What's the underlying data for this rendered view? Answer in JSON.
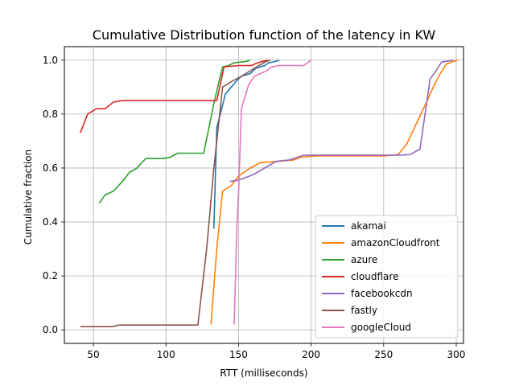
{
  "chart_data": {
    "type": "line",
    "title": "Cumulative Distribution function of the latency in KW",
    "xlabel": "RTT (milliseconds)",
    "ylabel": "Cumulative fraction",
    "xlim": [
      30,
      305
    ],
    "ylim": [
      -0.05,
      1.05
    ],
    "xticks": [
      50,
      100,
      150,
      200,
      250,
      300
    ],
    "yticks": [
      0.0,
      0.2,
      0.4,
      0.6,
      0.8,
      1.0
    ],
    "xtick_labels": [
      "50",
      "100",
      "150",
      "200",
      "250",
      "300"
    ],
    "ytick_labels": [
      "0.0",
      "0.2",
      "0.4",
      "0.6",
      "0.8",
      "1.0"
    ],
    "grid": true,
    "legend_position": "lower right",
    "series": [
      {
        "name": "akamai",
        "color": "#1f77b4",
        "points": [
          [
            133,
            0.375
          ],
          [
            135,
            0.75
          ],
          [
            141,
            0.875
          ],
          [
            149,
            0.925
          ],
          [
            152,
            0.94
          ],
          [
            158,
            0.95
          ],
          [
            162,
            0.97
          ],
          [
            168,
            0.98
          ],
          [
            171,
            0.99
          ],
          [
            175,
            0.995
          ],
          [
            178,
            1.0
          ]
        ]
      },
      {
        "name": "amazonCloudfront",
        "color": "#ff7f0e",
        "points": [
          [
            131,
            0.02
          ],
          [
            135,
            0.3
          ],
          [
            139,
            0.515
          ],
          [
            145,
            0.535
          ],
          [
            150,
            0.57
          ],
          [
            158,
            0.6
          ],
          [
            165,
            0.62
          ],
          [
            178,
            0.625
          ],
          [
            188,
            0.63
          ],
          [
            193,
            0.64
          ],
          [
            203,
            0.645
          ],
          [
            250,
            0.645
          ],
          [
            260,
            0.65
          ],
          [
            266,
            0.69
          ],
          [
            273,
            0.77
          ],
          [
            280,
            0.85
          ],
          [
            285,
            0.91
          ],
          [
            289,
            0.95
          ],
          [
            293,
            0.985
          ],
          [
            297,
            0.993
          ],
          [
            301,
            1.0
          ]
        ]
      },
      {
        "name": "azure",
        "color": "#2ca02c",
        "points": [
          [
            54,
            0.47
          ],
          [
            58,
            0.5
          ],
          [
            64,
            0.515
          ],
          [
            70,
            0.55
          ],
          [
            75,
            0.585
          ],
          [
            80,
            0.6
          ],
          [
            86,
            0.635
          ],
          [
            98,
            0.635
          ],
          [
            103,
            0.64
          ],
          [
            108,
            0.655
          ],
          [
            118,
            0.655
          ],
          [
            126,
            0.655
          ],
          [
            130,
            0.76
          ],
          [
            133,
            0.84
          ],
          [
            139,
            0.975
          ],
          [
            143,
            0.98
          ],
          [
            147,
            0.99
          ],
          [
            155,
            0.995
          ],
          [
            158,
            1.0
          ]
        ]
      },
      {
        "name": "cloudflare",
        "color": "#d62728",
        "points": [
          [
            41,
            0.73
          ],
          [
            46,
            0.8
          ],
          [
            52,
            0.82
          ],
          [
            58,
            0.82
          ],
          [
            64,
            0.845
          ],
          [
            70,
            0.85
          ],
          [
            130,
            0.85
          ],
          [
            135,
            0.85
          ],
          [
            140,
            0.975
          ],
          [
            150,
            0.98
          ],
          [
            159,
            0.98
          ],
          [
            163,
            0.99
          ],
          [
            170,
            1.0
          ]
        ]
      },
      {
        "name": "facebookcdn",
        "color": "#9467bd",
        "points": [
          [
            144,
            0.55
          ],
          [
            150,
            0.555
          ],
          [
            155,
            0.565
          ],
          [
            160,
            0.575
          ],
          [
            168,
            0.6
          ],
          [
            176,
            0.625
          ],
          [
            185,
            0.63
          ],
          [
            195,
            0.648
          ],
          [
            210,
            0.648
          ],
          [
            262,
            0.648
          ],
          [
            268,
            0.65
          ],
          [
            275,
            0.67
          ],
          [
            282,
            0.93
          ],
          [
            286,
            0.96
          ],
          [
            290,
            0.993
          ],
          [
            295,
            0.997
          ],
          [
            298,
            1.0
          ]
        ]
      },
      {
        "name": "fastly",
        "color": "#8c564b",
        "points": [
          [
            41,
            0.012
          ],
          [
            63,
            0.012
          ],
          [
            68,
            0.018
          ],
          [
            122,
            0.018
          ],
          [
            128,
            0.3
          ],
          [
            133,
            0.6
          ],
          [
            139,
            0.9
          ],
          [
            145,
            0.92
          ],
          [
            152,
            0.94
          ],
          [
            158,
            0.96
          ],
          [
            164,
            0.98
          ],
          [
            169,
            0.995
          ],
          [
            172,
            1.0
          ]
        ]
      },
      {
        "name": "googleCloud",
        "color": "#e377c2",
        "points": [
          [
            147,
            0.02
          ],
          [
            149,
            0.4
          ],
          [
            150,
            0.5
          ],
          [
            152,
            0.82
          ],
          [
            157,
            0.91
          ],
          [
            161,
            0.94
          ],
          [
            165,
            0.95
          ],
          [
            169,
            0.96
          ],
          [
            173,
            0.975
          ],
          [
            178,
            0.98
          ],
          [
            195,
            0.98
          ],
          [
            200,
            1.0
          ]
        ]
      }
    ]
  }
}
